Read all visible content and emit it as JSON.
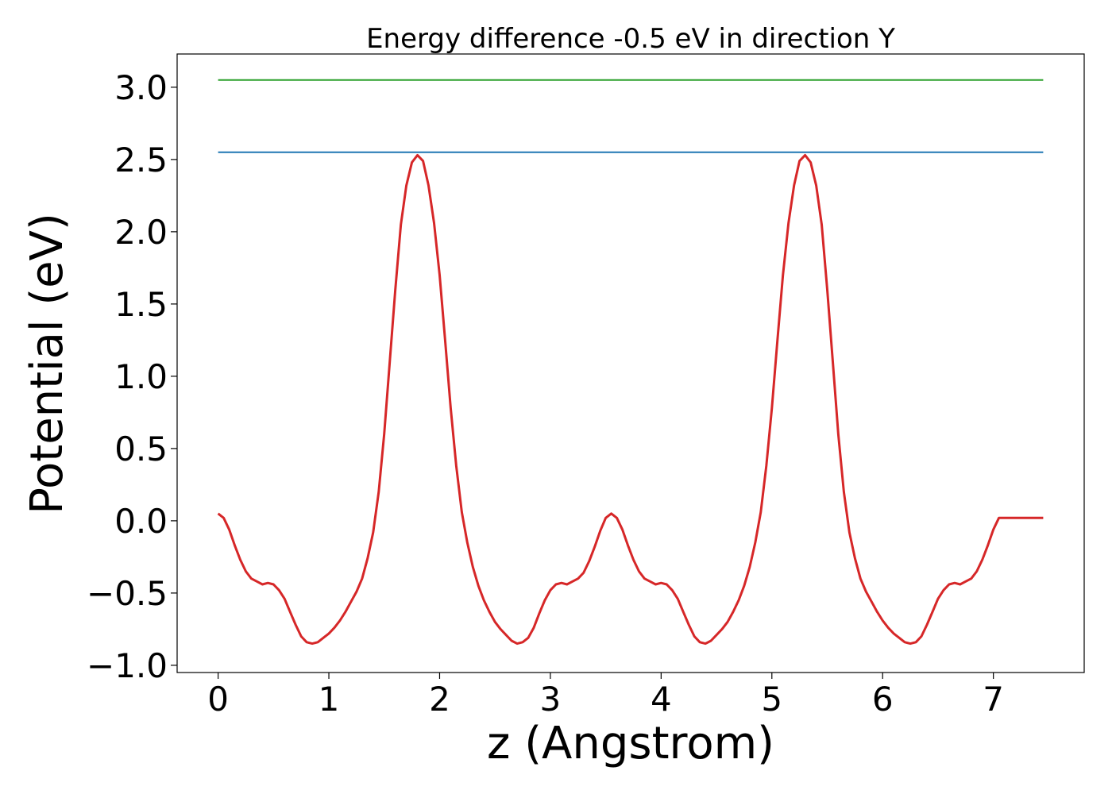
{
  "chart_data": {
    "type": "line",
    "title": "Energy difference -0.5 eV in direction Y",
    "xlabel": "z (Angstrom)",
    "ylabel": "Potential (eV)",
    "xlim": [
      -0.37,
      7.82
    ],
    "ylim": [
      -1.05,
      3.23
    ],
    "xticks": [
      0,
      1,
      2,
      3,
      4,
      5,
      6,
      7
    ],
    "xtick_labels": [
      "0",
      "1",
      "2",
      "3",
      "4",
      "5",
      "6",
      "7"
    ],
    "yticks": [
      -1.0,
      -0.5,
      0.0,
      0.5,
      1.0,
      1.5,
      2.0,
      2.5,
      3.0
    ],
    "ytick_labels": [
      "−1.0",
      "−0.5",
      "0.0",
      "0.5",
      "1.0",
      "1.5",
      "2.0",
      "2.5",
      "3.0"
    ],
    "grid": false,
    "legend": "none",
    "series": [
      {
        "color": "#d62728",
        "kind": "curve",
        "points": [
          [
            0.0,
            0.05
          ],
          [
            0.05,
            0.02
          ],
          [
            0.1,
            -0.06
          ],
          [
            0.15,
            -0.17
          ],
          [
            0.2,
            -0.27
          ],
          [
            0.25,
            -0.35
          ],
          [
            0.3,
            -0.4
          ],
          [
            0.35,
            -0.42
          ],
          [
            0.4,
            -0.44
          ],
          [
            0.45,
            -0.43
          ],
          [
            0.5,
            -0.44
          ],
          [
            0.55,
            -0.48
          ],
          [
            0.6,
            -0.54
          ],
          [
            0.65,
            -0.63
          ],
          [
            0.7,
            -0.72
          ],
          [
            0.75,
            -0.8
          ],
          [
            0.8,
            -0.84
          ],
          [
            0.85,
            -0.85
          ],
          [
            0.9,
            -0.84
          ],
          [
            0.95,
            -0.81
          ],
          [
            1.0,
            -0.78
          ],
          [
            1.05,
            -0.74
          ],
          [
            1.1,
            -0.69
          ],
          [
            1.15,
            -0.63
          ],
          [
            1.2,
            -0.56
          ],
          [
            1.25,
            -0.49
          ],
          [
            1.3,
            -0.4
          ],
          [
            1.35,
            -0.26
          ],
          [
            1.4,
            -0.08
          ],
          [
            1.45,
            0.2
          ],
          [
            1.5,
            0.6
          ],
          [
            1.55,
            1.1
          ],
          [
            1.6,
            1.6
          ],
          [
            1.65,
            2.05
          ],
          [
            1.7,
            2.32
          ],
          [
            1.75,
            2.48
          ],
          [
            1.8,
            2.53
          ],
          [
            1.85,
            2.49
          ],
          [
            1.9,
            2.32
          ],
          [
            1.95,
            2.06
          ],
          [
            2.0,
            1.7
          ],
          [
            2.05,
            1.25
          ],
          [
            2.1,
            0.78
          ],
          [
            2.15,
            0.38
          ],
          [
            2.2,
            0.06
          ],
          [
            2.25,
            -0.15
          ],
          [
            2.3,
            -0.32
          ],
          [
            2.35,
            -0.45
          ],
          [
            2.4,
            -0.55
          ],
          [
            2.45,
            -0.63
          ],
          [
            2.5,
            -0.7
          ],
          [
            2.55,
            -0.75
          ],
          [
            2.6,
            -0.79
          ],
          [
            2.65,
            -0.83
          ],
          [
            2.7,
            -0.85
          ],
          [
            2.75,
            -0.84
          ],
          [
            2.8,
            -0.81
          ],
          [
            2.85,
            -0.74
          ],
          [
            2.9,
            -0.64
          ],
          [
            2.95,
            -0.55
          ],
          [
            3.0,
            -0.48
          ],
          [
            3.05,
            -0.44
          ],
          [
            3.1,
            -0.43
          ],
          [
            3.15,
            -0.44
          ],
          [
            3.2,
            -0.42
          ],
          [
            3.25,
            -0.4
          ],
          [
            3.3,
            -0.36
          ],
          [
            3.35,
            -0.28
          ],
          [
            3.4,
            -0.18
          ],
          [
            3.45,
            -0.07
          ],
          [
            3.5,
            0.02
          ],
          [
            3.55,
            0.05
          ],
          [
            3.6,
            0.02
          ],
          [
            3.65,
            -0.06
          ],
          [
            3.7,
            -0.17
          ],
          [
            3.75,
            -0.27
          ],
          [
            3.8,
            -0.35
          ],
          [
            3.85,
            -0.4
          ],
          [
            3.9,
            -0.42
          ],
          [
            3.95,
            -0.44
          ],
          [
            4.0,
            -0.43
          ],
          [
            4.05,
            -0.44
          ],
          [
            4.1,
            -0.48
          ],
          [
            4.15,
            -0.54
          ],
          [
            4.2,
            -0.63
          ],
          [
            4.25,
            -0.72
          ],
          [
            4.3,
            -0.8
          ],
          [
            4.35,
            -0.84
          ],
          [
            4.4,
            -0.85
          ],
          [
            4.45,
            -0.83
          ],
          [
            4.5,
            -0.79
          ],
          [
            4.55,
            -0.75
          ],
          [
            4.6,
            -0.7
          ],
          [
            4.65,
            -0.63
          ],
          [
            4.7,
            -0.55
          ],
          [
            4.75,
            -0.45
          ],
          [
            4.8,
            -0.32
          ],
          [
            4.85,
            -0.15
          ],
          [
            4.9,
            0.06
          ],
          [
            4.95,
            0.38
          ],
          [
            5.0,
            0.78
          ],
          [
            5.05,
            1.25
          ],
          [
            5.1,
            1.7
          ],
          [
            5.15,
            2.06
          ],
          [
            5.2,
            2.32
          ],
          [
            5.25,
            2.49
          ],
          [
            5.3,
            2.53
          ],
          [
            5.35,
            2.48
          ],
          [
            5.4,
            2.32
          ],
          [
            5.45,
            2.05
          ],
          [
            5.5,
            1.6
          ],
          [
            5.55,
            1.1
          ],
          [
            5.6,
            0.6
          ],
          [
            5.65,
            0.2
          ],
          [
            5.7,
            -0.08
          ],
          [
            5.75,
            -0.26
          ],
          [
            5.8,
            -0.4
          ],
          [
            5.85,
            -0.49
          ],
          [
            5.9,
            -0.56
          ],
          [
            5.95,
            -0.63
          ],
          [
            6.0,
            -0.69
          ],
          [
            6.05,
            -0.74
          ],
          [
            6.1,
            -0.78
          ],
          [
            6.15,
            -0.81
          ],
          [
            6.2,
            -0.84
          ],
          [
            6.25,
            -0.85
          ],
          [
            6.3,
            -0.84
          ],
          [
            6.35,
            -0.8
          ],
          [
            6.4,
            -0.72
          ],
          [
            6.45,
            -0.63
          ],
          [
            6.5,
            -0.54
          ],
          [
            6.55,
            -0.48
          ],
          [
            6.6,
            -0.44
          ],
          [
            6.65,
            -0.43
          ],
          [
            6.7,
            -0.44
          ],
          [
            6.75,
            -0.42
          ],
          [
            6.8,
            -0.4
          ],
          [
            6.85,
            -0.35
          ],
          [
            6.9,
            -0.27
          ],
          [
            6.95,
            -0.17
          ],
          [
            7.0,
            -0.06
          ],
          [
            7.05,
            0.02
          ],
          [
            7.45,
            0.02
          ]
        ]
      },
      {
        "color": "#1f77b4",
        "kind": "horizontal",
        "x": [
          0.0,
          7.45
        ],
        "y": 2.55
      },
      {
        "color": "#2ca02c",
        "kind": "horizontal",
        "x": [
          0.0,
          7.45
        ],
        "y": 3.05
      }
    ]
  }
}
